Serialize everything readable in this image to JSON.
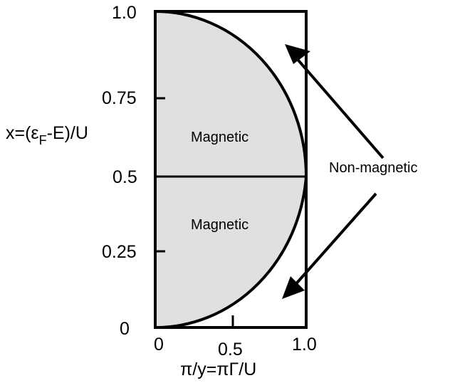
{
  "figure": {
    "y_axis": {
      "label_prefix": "x=(ε",
      "label_sub": "F",
      "label_suffix": "-E)/U",
      "ticks": [
        "0",
        "0.25",
        "0.5",
        "0.75",
        "1.0"
      ]
    },
    "x_axis": {
      "label": "π/y=πΓ/U",
      "ticks": [
        "0",
        "0.5",
        "1.0"
      ]
    },
    "regions": {
      "upper": "Magnetic",
      "lower": "Magnetic",
      "outside": "Non-magnetic"
    },
    "colors": {
      "magnetic_fill": "#e0e0e0",
      "line": "#000000",
      "background": "#ffffff"
    }
  }
}
